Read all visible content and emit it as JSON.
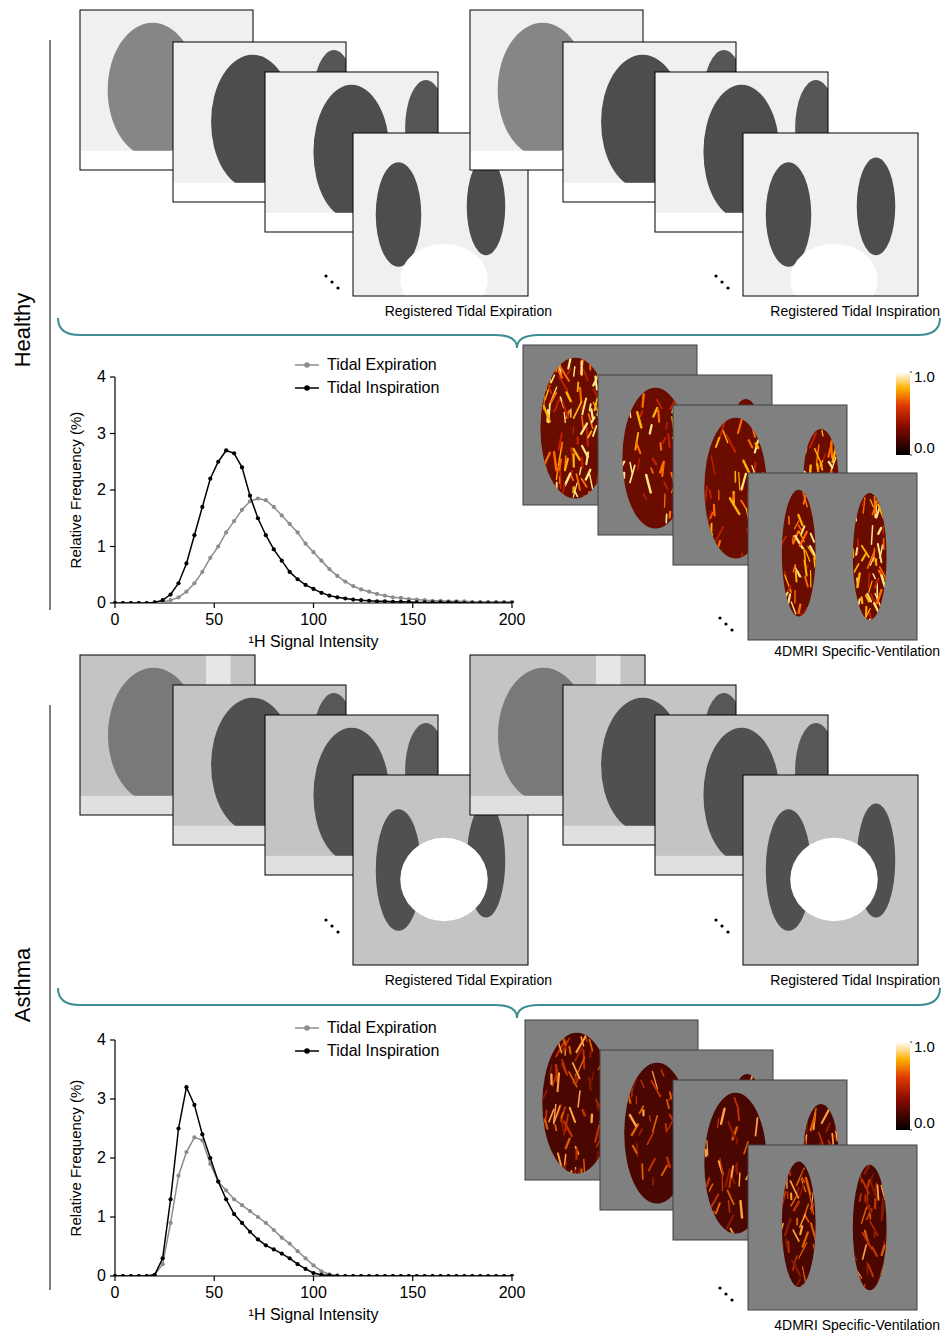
{
  "groups": [
    {
      "label": "Healthy",
      "image_labels": [
        "Registered Tidal Expiration",
        "Registered Tidal Inspiration"
      ],
      "map_label": "4DMRI Specific-Ventilation",
      "colorbar": {
        "range": [
          0,
          1
        ],
        "ticks": [
          {
            "value": 0,
            "label": "0.0"
          },
          {
            "value": 1,
            "label": "1.0"
          }
        ]
      }
    },
    {
      "label": "Asthma",
      "image_labels": [
        "Registered Tidal Expiration",
        "Registered Tidal Inspiration"
      ],
      "map_label": "4DMRI Specific-Ventilation",
      "colorbar": {
        "range": [
          0,
          1
        ],
        "ticks": [
          {
            "value": 0,
            "label": "0.0"
          },
          {
            "value": 1,
            "label": "1.0"
          }
        ]
      }
    }
  ],
  "chart_data": [
    {
      "type": "line",
      "x_label": "¹H Signal Intensity",
      "y_label": "Relative Frequency (%)",
      "x": [
        0,
        4,
        8,
        12,
        16,
        20,
        24,
        28,
        32,
        36,
        40,
        44,
        48,
        52,
        56,
        60,
        64,
        68,
        72,
        76,
        80,
        84,
        88,
        92,
        96,
        100,
        104,
        108,
        112,
        116,
        120,
        124,
        128,
        132,
        136,
        140,
        144,
        148,
        152,
        156,
        160,
        164,
        168,
        172,
        176,
        180,
        184,
        188,
        192,
        196,
        200
      ],
      "series": [
        {
          "name": "Tidal Expiration",
          "color": "#8c8c8c",
          "marker": "circle",
          "values": [
            0,
            0,
            0,
            0,
            0,
            0.01,
            0.02,
            0.05,
            0.1,
            0.2,
            0.35,
            0.55,
            0.8,
            1.0,
            1.25,
            1.45,
            1.65,
            1.8,
            1.85,
            1.82,
            1.7,
            1.55,
            1.4,
            1.25,
            1.05,
            0.9,
            0.75,
            0.6,
            0.48,
            0.38,
            0.3,
            0.24,
            0.2,
            0.16,
            0.13,
            0.1,
            0.09,
            0.07,
            0.06,
            0.05,
            0.04,
            0.04,
            0.03,
            0.03,
            0.03,
            0.02,
            0.02,
            0.02,
            0.02,
            0.02,
            0.02
          ]
        },
        {
          "name": "Tidal Inspiration",
          "color": "#000000",
          "marker": "circle",
          "values": [
            0,
            0,
            0,
            0,
            0,
            0.01,
            0.05,
            0.15,
            0.35,
            0.7,
            1.2,
            1.7,
            2.2,
            2.5,
            2.7,
            2.65,
            2.4,
            1.9,
            1.5,
            1.2,
            0.95,
            0.75,
            0.55,
            0.42,
            0.32,
            0.25,
            0.18,
            0.13,
            0.1,
            0.08,
            0.06,
            0.05,
            0.04,
            0.03,
            0.03,
            0.02,
            0.02,
            0.02,
            0.01,
            0.01,
            0.01,
            0.01,
            0.01,
            0.01,
            0,
            0,
            0,
            0,
            0,
            0,
            0
          ]
        }
      ],
      "xlim": [
        0,
        200
      ],
      "ylim": [
        0,
        4
      ],
      "xticks": [
        0,
        50,
        100,
        150,
        200
      ],
      "yticks": [
        0,
        1,
        2,
        3,
        4
      ],
      "legend": "upper right"
    },
    {
      "type": "line",
      "x_label": "¹H Signal Intensity",
      "y_label": "Relative Frequency (%)",
      "x": [
        0,
        4,
        8,
        12,
        16,
        20,
        24,
        28,
        32,
        36,
        40,
        44,
        48,
        52,
        56,
        60,
        64,
        68,
        72,
        76,
        80,
        84,
        88,
        92,
        96,
        100,
        104,
        108,
        112,
        116,
        120,
        124,
        128,
        132,
        136,
        140,
        144,
        148,
        152,
        156,
        160,
        164,
        168,
        172,
        176,
        180,
        184,
        188,
        192,
        196,
        200
      ],
      "series": [
        {
          "name": "Tidal Expiration",
          "color": "#8c8c8c",
          "marker": "circle",
          "values": [
            0,
            0,
            0,
            0,
            0,
            0.02,
            0.2,
            0.9,
            1.7,
            2.1,
            2.35,
            2.3,
            1.9,
            1.6,
            1.45,
            1.3,
            1.2,
            1.1,
            1.0,
            0.9,
            0.78,
            0.65,
            0.55,
            0.42,
            0.3,
            0.18,
            0.08,
            0.03,
            0.01,
            0,
            0,
            0,
            0,
            0,
            0,
            0,
            0,
            0,
            0,
            0,
            0,
            0,
            0,
            0,
            0,
            0,
            0,
            0,
            0,
            0,
            0
          ]
        },
        {
          "name": "Tidal Inspiration",
          "color": "#000000",
          "marker": "circle",
          "values": [
            0,
            0,
            0,
            0,
            0,
            0.02,
            0.3,
            1.3,
            2.5,
            3.2,
            2.9,
            2.4,
            2.0,
            1.6,
            1.3,
            1.05,
            0.9,
            0.75,
            0.62,
            0.52,
            0.45,
            0.38,
            0.3,
            0.2,
            0.12,
            0.05,
            0.02,
            0.01,
            0,
            0,
            0,
            0,
            0,
            0,
            0,
            0,
            0,
            0,
            0,
            0,
            0,
            0,
            0,
            0,
            0,
            0,
            0,
            0,
            0,
            0,
            0
          ]
        }
      ],
      "xlim": [
        0,
        200
      ],
      "ylim": [
        0,
        4
      ],
      "xticks": [
        0,
        50,
        100,
        150,
        200
      ],
      "yticks": [
        0,
        1,
        2,
        3,
        4
      ],
      "legend": "upper right"
    }
  ]
}
